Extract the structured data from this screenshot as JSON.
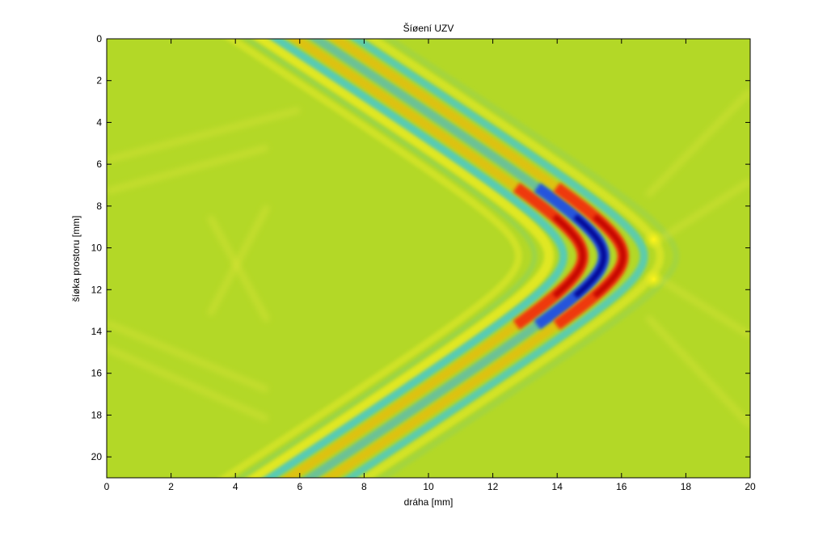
{
  "chart_data": {
    "type": "heatmap",
    "title": "Šíøení UZV",
    "xlabel": "dráha [mm]",
    "ylabel": "šíøka prostoru [mm]",
    "xlim": [
      0,
      20
    ],
    "ylim": [
      21,
      0
    ],
    "x_ticks": [
      0,
      2,
      4,
      6,
      8,
      10,
      12,
      14,
      16,
      18,
      20
    ],
    "y_ticks": [
      0,
      2,
      4,
      6,
      8,
      10,
      12,
      14,
      16,
      18,
      20
    ],
    "y_axis_reversed": true,
    "grid": false,
    "colormap": "jet",
    "background_color": "#b3d827",
    "wavefront": {
      "center_y": 10.4,
      "apex_x": 15.3,
      "crests": [
        {
          "apex_x": 14.8,
          "polarity": "positive"
        },
        {
          "apex_x": 15.45,
          "polarity": "negative"
        },
        {
          "apex_x": 16.05,
          "polarity": "positive"
        }
      ],
      "peak_strength_y_range": [
        8.5,
        12.3
      ]
    },
    "scatter_points": [
      {
        "x": 17.0,
        "y": 9.6
      },
      {
        "x": 17.0,
        "y": 11.5
      }
    ]
  }
}
